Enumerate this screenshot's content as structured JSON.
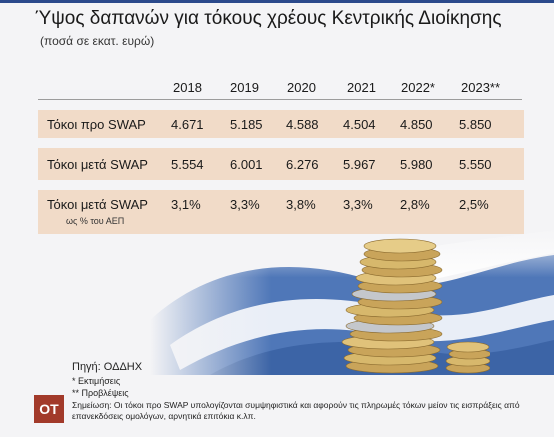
{
  "title": "Ύψος δαπανών για τόκους χρέους Κεντρικής Διοίκησης",
  "subtitle": "(ποσά σε εκατ. ευρώ)",
  "table": {
    "headers": [
      "2018",
      "2019",
      "2020",
      "2021",
      "2022*",
      "2023**"
    ],
    "rows": [
      {
        "label": "Τόκοι προ SWAP",
        "values": [
          "4.671",
          "5.185",
          "4.588",
          "4.504",
          "4.850",
          "5.850"
        ]
      },
      {
        "label": "Τόκοι μετά SWAP",
        "values": [
          "5.554",
          "6.001",
          "6.276",
          "5.967",
          "5.980",
          "5.550"
        ]
      },
      {
        "label": "Τόκοι μετά SWAP",
        "note": "ως % του ΑΕΠ",
        "values": [
          "3,1%",
          "3,3%",
          "3,8%",
          "3,3%",
          "2,8%",
          "2,5%"
        ]
      }
    ]
  },
  "footer": {
    "source": "Πηγή: ΟΔΔΗΧ",
    "footnote1": "* Εκτιμήσεις",
    "footnote2": "** Προβλέψεις",
    "footnote3": "Σημείωση: Οι τόκοι προ SWAP υπολογίζονται συμψηφιστικά και αφορούν τις πληρωμές τόκων μείον τις εισπράξεις από επανεκδόσεις ομολόγων, αρνητικά επιτόκια κ.λπ."
  },
  "logo_text": "ΟΤ",
  "colors": {
    "band": "#f1dbc8",
    "logo": "#a23a2a",
    "accent": "#2b4a8c"
  }
}
